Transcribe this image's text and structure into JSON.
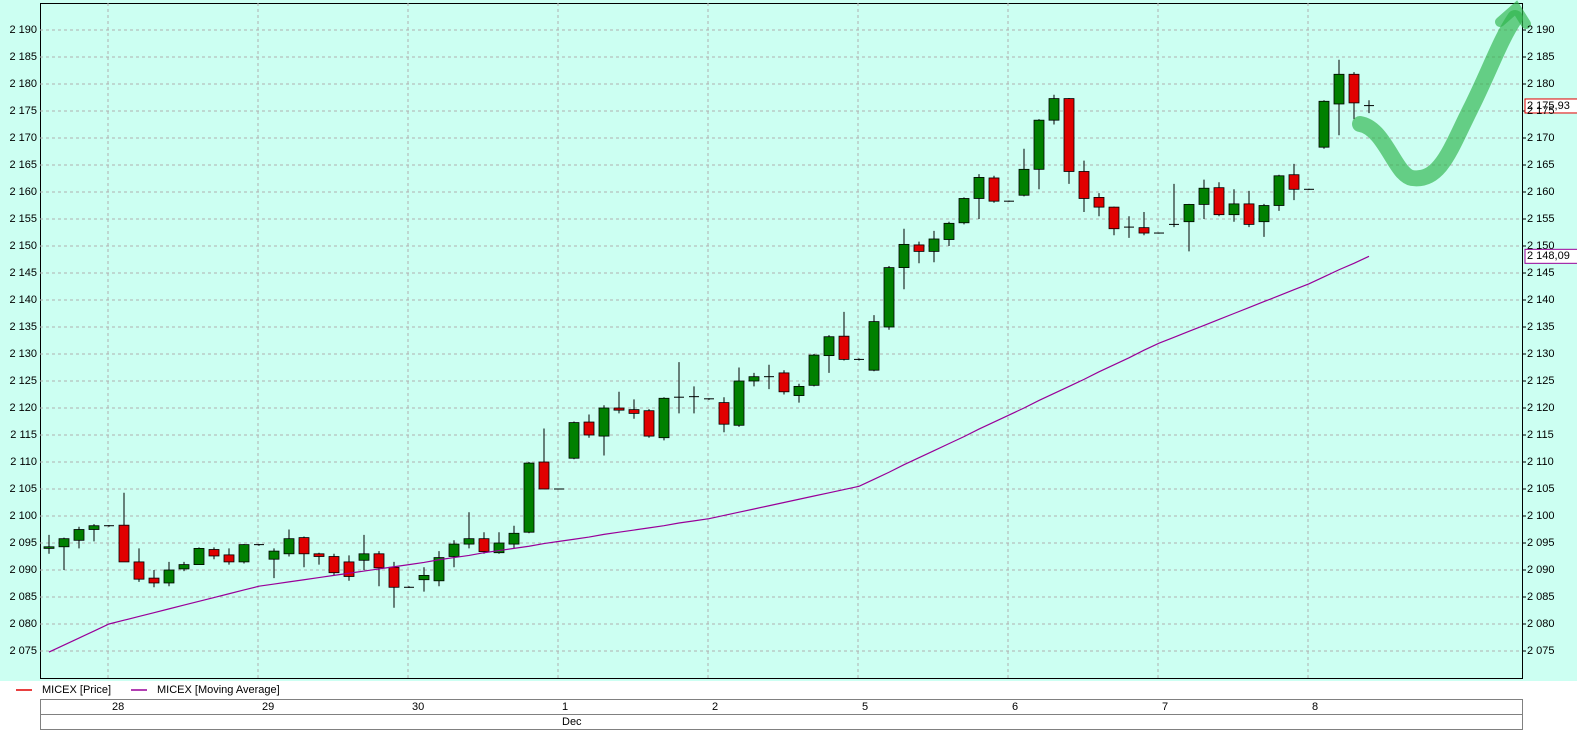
{
  "chart_data": {
    "type": "candlestick",
    "categories": [
      null,
      null,
      null,
      null,
      "28",
      null,
      null,
      null,
      null,
      null,
      null,
      null,
      null,
      null,
      "29",
      null,
      null,
      null,
      null,
      null,
      null,
      null,
      null,
      null,
      "30",
      null,
      null,
      null,
      null,
      null,
      null,
      null,
      null,
      null,
      "1",
      null,
      null,
      null,
      null,
      null,
      null,
      null,
      null,
      null,
      "2",
      null,
      null,
      null,
      null,
      null,
      null,
      null,
      null,
      null,
      "5",
      null,
      null,
      null,
      null,
      null,
      null,
      null,
      null,
      null,
      "6",
      null,
      null,
      null,
      null,
      null,
      null,
      null,
      null,
      null,
      "7",
      null,
      null,
      null,
      null,
      null,
      null,
      null,
      null,
      null,
      "8",
      null,
      null,
      null,
      null
    ],
    "month_labels": [
      null,
      null,
      null,
      null,
      null,
      null,
      null,
      null,
      null,
      null,
      null,
      null,
      null,
      null,
      null,
      null,
      null,
      null,
      null,
      null,
      null,
      null,
      null,
      null,
      null,
      null,
      null,
      null,
      null,
      null,
      null,
      null,
      null,
      null,
      "Dec",
      null,
      null,
      null,
      null,
      null,
      null,
      null,
      null,
      null,
      null,
      null,
      null,
      null,
      null,
      null,
      null,
      null,
      null,
      null,
      null,
      null,
      null,
      null,
      null,
      null,
      null,
      null,
      null,
      null,
      null,
      null,
      null,
      null,
      null,
      null,
      null,
      null,
      null,
      null,
      null,
      null,
      null,
      null,
      null,
      null,
      null,
      null,
      null,
      null,
      null,
      null,
      null,
      null,
      null
    ],
    "series": [
      {
        "name": "MICEX [Price]",
        "color": "#e00000",
        "up_color": "#008000",
        "down_color": "#e00000",
        "last_label": "2 175,93",
        "open": [
          2094,
          2094.3,
          2095.5,
          2097.5,
          2098.2,
          2098.3,
          2091.5,
          2088.5,
          2087.6,
          2090.2,
          2091,
          2093.8,
          2092.8,
          2091.5,
          2094.7,
          2092,
          2093,
          2096,
          2093,
          2092.5,
          2091.5,
          2091.8,
          2093,
          2090.5,
          2086.8,
          2088.2,
          2088,
          2092.5,
          2094.8,
          2095.8,
          2093.2,
          2094.8,
          2097,
          2110,
          2105,
          2110.7,
          2117.4,
          2114.8,
          2120,
          2119.7,
          2119.5,
          2114.5,
          2122,
          2122.1,
          2121.7,
          2121,
          2116.8,
          2125,
          2125.8,
          2126.5,
          2122.3,
          2124.2,
          2129.7,
          2133.3,
          2129,
          2127,
          2135,
          2146,
          2150.2,
          2149,
          2151.2,
          2154.3,
          2158.8,
          2162.6,
          2158.3,
          2159.4,
          2164.2,
          2173.3,
          2177.3,
          2163.8,
          2159,
          2157.2,
          2153.5,
          2153.4,
          2152.4,
          2154,
          2154.5,
          2157.7,
          2160.8,
          2155.8,
          2157.8,
          2154.5,
          2157.5,
          2163.2,
          2160.5,
          2168.3,
          2176.3,
          2181.8,
          2176
        ],
        "high": [
          2096.5,
          2096,
          2098,
          2098.5,
          2098.3,
          2104.3,
          2094,
          2090,
          2091.5,
          2091.5,
          2094.2,
          2094.2,
          2094,
          2094.8,
          2094.8,
          2094,
          2097.5,
          2096.2,
          2093.2,
          2093,
          2092.7,
          2096.5,
          2093.5,
          2091.5,
          2087,
          2090.5,
          2093.5,
          2095.5,
          2100.7,
          2097,
          2097,
          2098.2,
          2110,
          2116.2,
          2105.1,
          2117.5,
          2118.8,
          2120.5,
          2123,
          2121.6,
          2119.8,
          2122,
          2128.5,
          2124,
          2121.8,
          2122,
          2127.5,
          2126.5,
          2128,
          2127,
          2124.5,
          2130,
          2133.5,
          2137.8,
          2129.2,
          2137.2,
          2146.3,
          2153.2,
          2150.8,
          2152.8,
          2154.5,
          2159,
          2163.3,
          2163,
          2158.4,
          2168,
          2173.5,
          2178,
          2177.4,
          2165.8,
          2159.8,
          2157.3,
          2155.5,
          2156.3,
          2152.5,
          2161.5,
          2157.8,
          2162.3,
          2161.8,
          2160.5,
          2160.2,
          2157.8,
          2163.2,
          2165.2,
          2160.6,
          2177,
          2184.5,
          2182.2,
          2177
        ],
        "low": [
          2093,
          2090,
          2094,
          2095.3,
          2098,
          2091.5,
          2087.8,
          2086.8,
          2087,
          2089.8,
          2091,
          2092,
          2091,
          2091.2,
          2094.5,
          2088.5,
          2092.5,
          2090.5,
          2091,
          2089,
          2088,
          2090,
          2087,
          2083,
          2086.7,
          2086,
          2087,
          2090.5,
          2094,
          2093,
          2093,
          2094,
          2096.8,
          2105,
          2104.9,
          2110.5,
          2114.5,
          2111.2,
          2119,
          2118,
          2114.5,
          2114,
          2119,
          2119,
          2121.5,
          2115.5,
          2116.5,
          2124,
          2123.5,
          2122.5,
          2121,
          2124,
          2126.5,
          2128.8,
          2128.8,
          2126.8,
          2134.5,
          2142,
          2146.8,
          2147,
          2150,
          2154,
          2155,
          2158,
          2158.2,
          2159.2,
          2160.5,
          2172.5,
          2161.5,
          2156.3,
          2155.5,
          2152,
          2151.5,
          2152,
          2152.3,
          2153.5,
          2149,
          2155,
          2155.5,
          2154.5,
          2153.5,
          2151.7,
          2156.5,
          2158.5,
          2160.4,
          2168,
          2170.5,
          2173.5,
          2174.6
        ],
        "close": [
          2094.3,
          2095.8,
          2097.5,
          2098.2,
          2098.2,
          2091.5,
          2088.3,
          2087.6,
          2090,
          2091,
          2094,
          2092.6,
          2091.5,
          2094.7,
          2094.7,
          2093.5,
          2095.8,
          2093,
          2092.5,
          2089.5,
          2088.8,
          2093,
          2090.4,
          2086.8,
          2086.8,
          2089,
          2092.3,
          2094.8,
          2095.8,
          2093.4,
          2095,
          2096.8,
          2109.8,
          2105,
          2105,
          2117.3,
          2115,
          2120,
          2119.6,
          2119,
          2114.8,
          2121.8,
          2122,
          2122.1,
          2121.7,
          2117,
          2125,
          2125.8,
          2125.8,
          2123,
          2124,
          2129.8,
          2133.2,
          2129,
          2129,
          2136,
          2146,
          2150.3,
          2149,
          2151.3,
          2154.2,
          2158.8,
          2162.7,
          2158.3,
          2158.3,
          2164.2,
          2173.3,
          2177.3,
          2163.8,
          2158.8,
          2157.2,
          2153.2,
          2153.5,
          2152.4,
          2152.4,
          2154,
          2157.7,
          2160.7,
          2155.8,
          2157.8,
          2154,
          2157.5,
          2163,
          2160.5,
          2160.5,
          2176.8,
          2181.8,
          2176.5,
          2175.93
        ]
      },
      {
        "name": "MICEX [Moving Average]",
        "color": "#990099",
        "last_label": "2 148,09",
        "values": [
          2074.8,
          2076.1,
          2077.4,
          2078.7,
          2080.0,
          2080.7,
          2081.4,
          2082.1,
          2082.8,
          2083.5,
          2084.2,
          2084.9,
          2085.6,
          2086.3,
          2087.0,
          2087.4,
          2087.8,
          2088.2,
          2088.6,
          2089.0,
          2089.4,
          2089.8,
          2090.2,
          2090.6,
          2091.0,
          2091.4,
          2091.9,
          2092.3,
          2092.7,
          2093.2,
          2093.6,
          2094.0,
          2094.4,
          2094.9,
          2095.3,
          2095.7,
          2096.1,
          2096.6,
          2097.0,
          2097.4,
          2097.8,
          2098.2,
          2098.7,
          2099.1,
          2099.5,
          2100.1,
          2100.7,
          2101.3,
          2101.9,
          2102.5,
          2103.1,
          2103.7,
          2104.3,
          2104.9,
          2105.5,
          2106.8,
          2108.1,
          2109.5,
          2110.8,
          2112.1,
          2113.4,
          2114.7,
          2116.1,
          2117.4,
          2118.7,
          2120.0,
          2121.4,
          2122.7,
          2124.0,
          2125.3,
          2126.7,
          2128.0,
          2129.3,
          2130.7,
          2132.0,
          2133.1,
          2134.2,
          2135.3,
          2136.4,
          2137.5,
          2138.6,
          2139.7,
          2140.8,
          2141.9,
          2143.0,
          2144.3,
          2145.6,
          2146.8,
          2148.09
        ]
      }
    ],
    "ylim": [
      2070,
      2195
    ],
    "yticks": [
      {
        "value": 2075,
        "label": "2 075"
      },
      {
        "value": 2080,
        "label": "2 080"
      },
      {
        "value": 2085,
        "label": "2 085"
      },
      {
        "value": 2090,
        "label": "2 090"
      },
      {
        "value": 2095,
        "label": "2 095"
      },
      {
        "value": 2100,
        "label": "2 100"
      },
      {
        "value": 2105,
        "label": "2 105"
      },
      {
        "value": 2110,
        "label": "2 110"
      },
      {
        "value": 2115,
        "label": "2 115"
      },
      {
        "value": 2120,
        "label": "2 120"
      },
      {
        "value": 2125,
        "label": "2 125"
      },
      {
        "value": 2130,
        "label": "2 130"
      },
      {
        "value": 2135,
        "label": "2 135"
      },
      {
        "value": 2140,
        "label": "2 140"
      },
      {
        "value": 2145,
        "label": "2 145"
      },
      {
        "value": 2150,
        "label": "2 150"
      },
      {
        "value": 2155,
        "label": "2 155"
      },
      {
        "value": 2160,
        "label": "2 160"
      },
      {
        "value": 2165,
        "label": "2 165"
      },
      {
        "value": 2170,
        "label": "2 170"
      },
      {
        "value": 2175,
        "label": "2 175"
      },
      {
        "value": 2180,
        "label": "2 180"
      },
      {
        "value": 2185,
        "label": "2 185"
      },
      {
        "value": 2190,
        "label": "2 190"
      }
    ],
    "grid": true
  }
}
